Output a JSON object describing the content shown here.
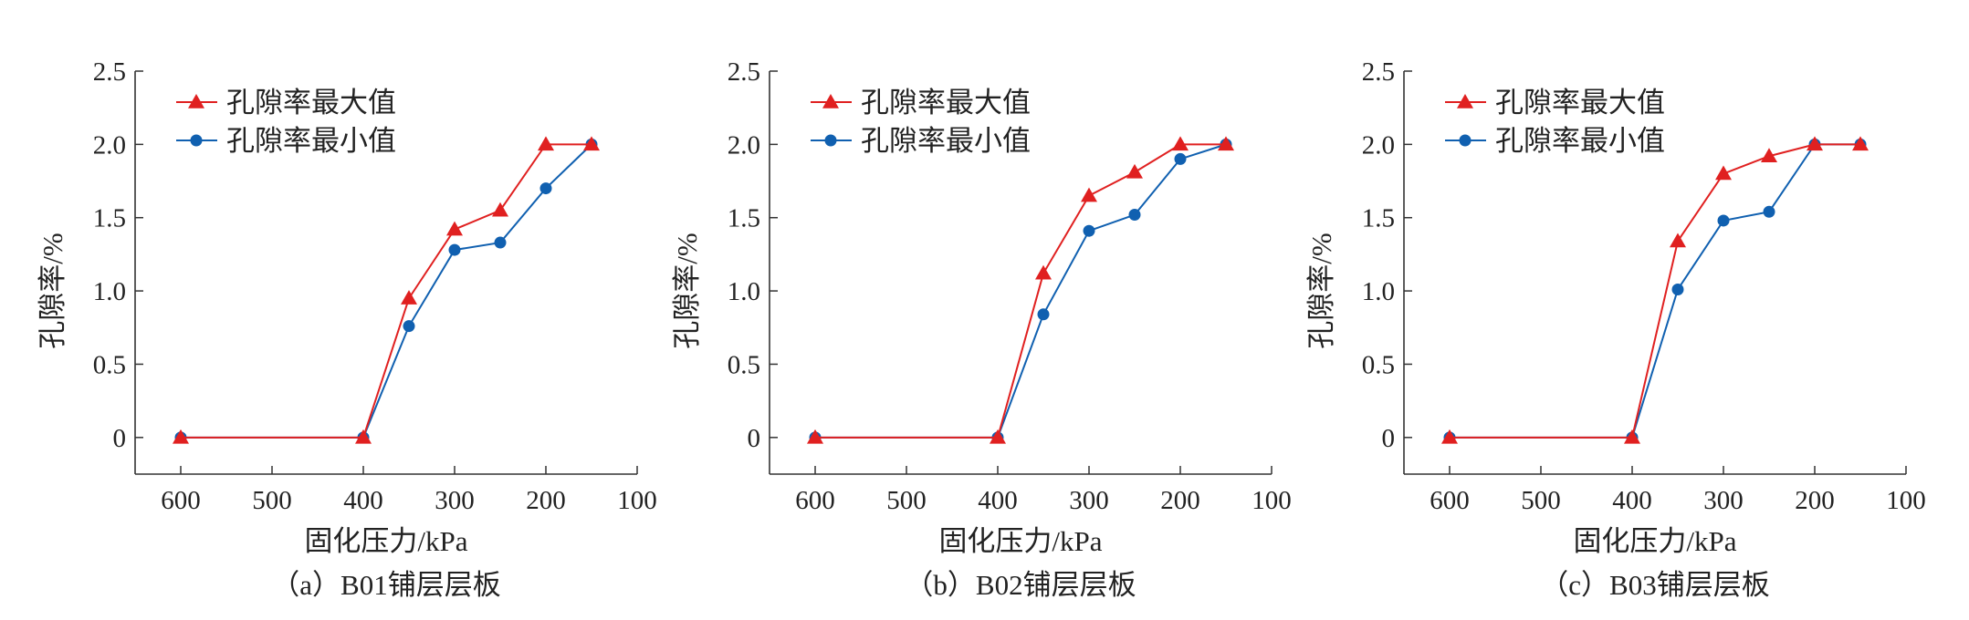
{
  "chart_data": [
    {
      "type": "line",
      "caption": "（a）B01铺层层板",
      "xlabel": "固化压力/kPa",
      "ylabel": "孔隙率/%",
      "xlim": [
        650,
        100
      ],
      "ylim": [
        -0.25,
        2.5
      ],
      "xticks": [
        600,
        500,
        400,
        300,
        200,
        100
      ],
      "yticks": [
        0,
        0.5,
        1.0,
        1.5,
        2.0,
        2.5
      ],
      "xtick_labels": [
        "600",
        "500",
        "400",
        "300",
        "200",
        "100"
      ],
      "ytick_labels": [
        "0",
        "0.5",
        "1.0",
        "1.5",
        "2.0",
        "2.5"
      ],
      "legend_position": "top-left",
      "x": [
        600,
        400,
        350,
        300,
        250,
        200,
        150
      ],
      "series": [
        {
          "name": "孔隙率最大值",
          "color": "#e02020",
          "marker": "triangle",
          "values": [
            0,
            0,
            0.95,
            1.42,
            1.55,
            2.0,
            2.0
          ]
        },
        {
          "name": "孔隙率最小值",
          "color": "#1060b0",
          "marker": "circle",
          "values": [
            0,
            0,
            0.76,
            1.28,
            1.33,
            1.7,
            2.0
          ]
        }
      ]
    },
    {
      "type": "line",
      "caption": "（b）B02铺层层板",
      "xlabel": "固化压力/kPa",
      "ylabel": "孔隙率/%",
      "xlim": [
        650,
        100
      ],
      "ylim": [
        -0.25,
        2.5
      ],
      "xticks": [
        600,
        500,
        400,
        300,
        200,
        100
      ],
      "yticks": [
        0,
        0.5,
        1.0,
        1.5,
        2.0,
        2.5
      ],
      "xtick_labels": [
        "600",
        "500",
        "400",
        "300",
        "200",
        "100"
      ],
      "ytick_labels": [
        "0",
        "0.5",
        "1.0",
        "1.5",
        "2.0",
        "2.5"
      ],
      "legend_position": "top-left",
      "x": [
        600,
        400,
        350,
        300,
        250,
        200,
        150
      ],
      "series": [
        {
          "name": "孔隙率最大值",
          "color": "#e02020",
          "marker": "triangle",
          "values": [
            0,
            0,
            1.12,
            1.65,
            1.81,
            2.0,
            2.0
          ]
        },
        {
          "name": "孔隙率最小值",
          "color": "#1060b0",
          "marker": "circle",
          "values": [
            0,
            0,
            0.84,
            1.41,
            1.52,
            1.9,
            2.0
          ]
        }
      ]
    },
    {
      "type": "line",
      "caption": "（c）B03铺层层板",
      "xlabel": "固化压力/kPa",
      "ylabel": "孔隙率/%",
      "xlim": [
        650,
        100
      ],
      "ylim": [
        -0.25,
        2.5
      ],
      "xticks": [
        600,
        500,
        400,
        300,
        200,
        100
      ],
      "yticks": [
        0,
        0.5,
        1.0,
        1.5,
        2.0,
        2.5
      ],
      "xtick_labels": [
        "600",
        "500",
        "400",
        "300",
        "200",
        "100"
      ],
      "ytick_labels": [
        "0",
        "0.5",
        "1.0",
        "1.5",
        "2.0",
        "2.5"
      ],
      "legend_position": "top-left",
      "x": [
        600,
        400,
        350,
        300,
        250,
        200,
        150
      ],
      "series": [
        {
          "name": "孔隙率最大值",
          "color": "#e02020",
          "marker": "triangle",
          "values": [
            0,
            0,
            1.34,
            1.8,
            1.92,
            2.0,
            2.0
          ]
        },
        {
          "name": "孔隙率最小值",
          "color": "#1060b0",
          "marker": "circle",
          "values": [
            0,
            0,
            1.01,
            1.48,
            1.54,
            2.0,
            2.0
          ]
        }
      ]
    }
  ]
}
